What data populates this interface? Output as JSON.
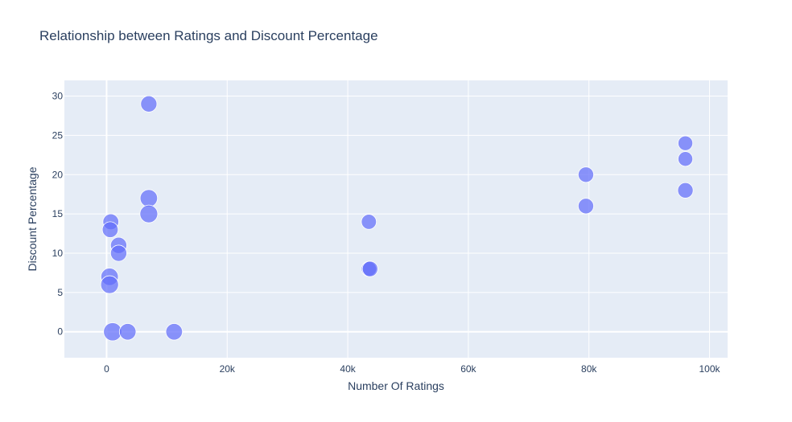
{
  "chart_data": {
    "type": "scatter",
    "title": "Relationship between Ratings and Discount Percentage",
    "xlabel": "Number Of Ratings",
    "ylabel": "Discount Percentage",
    "xlim": [
      -7000,
      103000
    ],
    "ylim": [
      -3.3,
      32
    ],
    "xticks": [
      {
        "value": 0,
        "label": "0"
      },
      {
        "value": 20000,
        "label": "20k"
      },
      {
        "value": 40000,
        "label": "40k"
      },
      {
        "value": 60000,
        "label": "60k"
      },
      {
        "value": 80000,
        "label": "80k"
      },
      {
        "value": 100000,
        "label": "100k"
      }
    ],
    "yticks": [
      {
        "value": 0,
        "label": "0"
      },
      {
        "value": 5,
        "label": "5"
      },
      {
        "value": 10,
        "label": "10"
      },
      {
        "value": 15,
        "label": "15"
      },
      {
        "value": 20,
        "label": "20"
      },
      {
        "value": 25,
        "label": "25"
      },
      {
        "value": 30,
        "label": "30"
      }
    ],
    "grid": true,
    "colors": {
      "marker": "#636efa",
      "plot_bg": "#e5ecf6",
      "grid": "#ffffff",
      "text": "#2a3f5f"
    },
    "points": [
      {
        "x": 7000,
        "y": 29,
        "size": 4.2
      },
      {
        "x": 96000,
        "y": 24,
        "size": 3.8
      },
      {
        "x": 96000,
        "y": 22,
        "size": 3.8
      },
      {
        "x": 79500,
        "y": 20,
        "size": 4.0
      },
      {
        "x": 96000,
        "y": 18,
        "size": 4.0
      },
      {
        "x": 7000,
        "y": 17,
        "size": 4.5
      },
      {
        "x": 79500,
        "y": 16,
        "size": 4.0
      },
      {
        "x": 7000,
        "y": 15,
        "size": 4.6
      },
      {
        "x": 700,
        "y": 14,
        "size": 4.1
      },
      {
        "x": 43500,
        "y": 14,
        "size": 3.9
      },
      {
        "x": 600,
        "y": 13,
        "size": 4.1
      },
      {
        "x": 2000,
        "y": 11,
        "size": 4.2
      },
      {
        "x": 2000,
        "y": 10,
        "size": 4.2
      },
      {
        "x": 43500,
        "y": 8,
        "size": 3.9
      },
      {
        "x": 43700,
        "y": 8,
        "size": 4.0
      },
      {
        "x": 500,
        "y": 7,
        "size": 4.5
      },
      {
        "x": 500,
        "y": 6,
        "size": 4.6
      },
      {
        "x": 1000,
        "y": 0,
        "size": 4.7
      },
      {
        "x": 3500,
        "y": 0,
        "size": 4.3
      },
      {
        "x": 11200,
        "y": 0,
        "size": 4.3
      }
    ]
  }
}
